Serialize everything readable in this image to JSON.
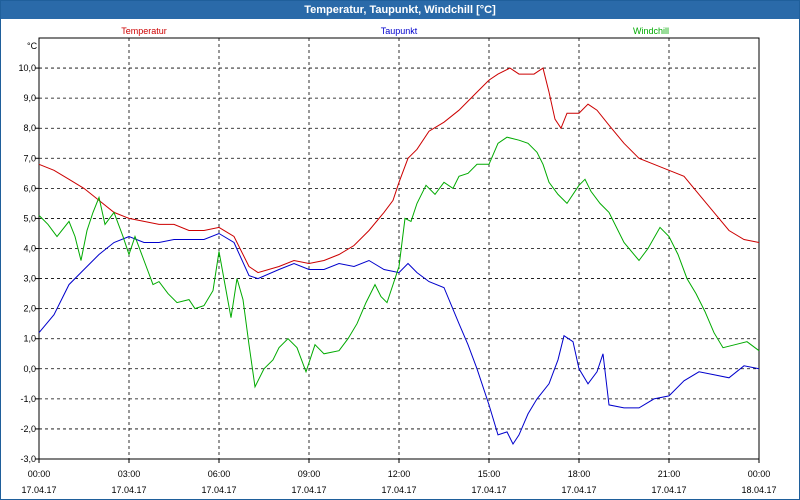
{
  "chart_data": {
    "type": "line",
    "title": "Temperatur, Taupunkt, Windchill [°C]",
    "ylabel": "°C",
    "ylim": [
      -3,
      11
    ],
    "yticks": [
      "10,0",
      "9,0",
      "8,0",
      "7,0",
      "6,0",
      "5,0",
      "4,0",
      "3,0",
      "2,0",
      "1,0",
      "0,0",
      "-1,0",
      "-2,0",
      "-3,0"
    ],
    "xlim_hours": [
      0,
      24
    ],
    "xticks": [
      {
        "time": "00:00",
        "date": "17.04.17"
      },
      {
        "time": "03:00",
        "date": "17.04.17"
      },
      {
        "time": "06:00",
        "date": "17.04.17"
      },
      {
        "time": "09:00",
        "date": "17.04.17"
      },
      {
        "time": "12:00",
        "date": "17.04.17"
      },
      {
        "time": "15:00",
        "date": "17.04.17"
      },
      {
        "time": "18:00",
        "date": "17.04.17"
      },
      {
        "time": "21:00",
        "date": "17.04.17"
      },
      {
        "time": "00:00",
        "date": "18.04.17"
      }
    ],
    "grid": true,
    "series": [
      {
        "name": "Temperatur",
        "color": "#cc0000",
        "points": [
          [
            0,
            6.8
          ],
          [
            0.5,
            6.6
          ],
          [
            1,
            6.3
          ],
          [
            1.5,
            6.0
          ],
          [
            2,
            5.6
          ],
          [
            2.5,
            5.2
          ],
          [
            3,
            5.0
          ],
          [
            3.5,
            4.9
          ],
          [
            4,
            4.8
          ],
          [
            4.5,
            4.8
          ],
          [
            5,
            4.6
          ],
          [
            5.5,
            4.6
          ],
          [
            6,
            4.7
          ],
          [
            6.5,
            4.4
          ],
          [
            7,
            3.4
          ],
          [
            7.3,
            3.2
          ],
          [
            8,
            3.4
          ],
          [
            8.5,
            3.6
          ],
          [
            9,
            3.5
          ],
          [
            9.5,
            3.6
          ],
          [
            10,
            3.8
          ],
          [
            10.5,
            4.1
          ],
          [
            11,
            4.6
          ],
          [
            11.5,
            5.2
          ],
          [
            11.8,
            5.6
          ],
          [
            12,
            6.2
          ],
          [
            12.3,
            7.0
          ],
          [
            12.6,
            7.3
          ],
          [
            13,
            7.9
          ],
          [
            13.5,
            8.2
          ],
          [
            14,
            8.6
          ],
          [
            14.5,
            9.1
          ],
          [
            15,
            9.6
          ],
          [
            15.3,
            9.8
          ],
          [
            15.7,
            10.0
          ],
          [
            16,
            9.8
          ],
          [
            16.2,
            9.8
          ],
          [
            16.5,
            9.8
          ],
          [
            16.8,
            10.0
          ],
          [
            17,
            9.2
          ],
          [
            17.2,
            8.3
          ],
          [
            17.4,
            8.0
          ],
          [
            17.6,
            8.5
          ],
          [
            18,
            8.5
          ],
          [
            18.3,
            8.8
          ],
          [
            18.6,
            8.6
          ],
          [
            19,
            8.1
          ],
          [
            19.5,
            7.5
          ],
          [
            20,
            7.0
          ],
          [
            20.5,
            6.8
          ],
          [
            21,
            6.6
          ],
          [
            21.5,
            6.4
          ],
          [
            22,
            5.8
          ],
          [
            22.5,
            5.2
          ],
          [
            23,
            4.6
          ],
          [
            23.5,
            4.3
          ],
          [
            24,
            4.2
          ]
        ]
      },
      {
        "name": "Taupunkt",
        "color": "#0000cc",
        "points": [
          [
            0,
            1.2
          ],
          [
            0.5,
            1.8
          ],
          [
            1,
            2.8
          ],
          [
            1.5,
            3.3
          ],
          [
            2,
            3.8
          ],
          [
            2.5,
            4.2
          ],
          [
            3,
            4.4
          ],
          [
            3.5,
            4.2
          ],
          [
            4,
            4.2
          ],
          [
            4.5,
            4.3
          ],
          [
            5,
            4.3
          ],
          [
            5.5,
            4.3
          ],
          [
            6,
            4.5
          ],
          [
            6.5,
            4.2
          ],
          [
            7,
            3.1
          ],
          [
            7.3,
            3.0
          ],
          [
            8,
            3.3
          ],
          [
            8.5,
            3.5
          ],
          [
            9,
            3.3
          ],
          [
            9.5,
            3.3
          ],
          [
            10,
            3.5
          ],
          [
            10.5,
            3.4
          ],
          [
            11,
            3.6
          ],
          [
            11.5,
            3.3
          ],
          [
            12,
            3.2
          ],
          [
            12.3,
            3.5
          ],
          [
            12.6,
            3.2
          ],
          [
            13,
            2.9
          ],
          [
            13.5,
            2.7
          ],
          [
            14,
            1.5
          ],
          [
            14.3,
            0.8
          ],
          [
            14.6,
            0.0
          ],
          [
            15,
            -1.2
          ],
          [
            15.3,
            -2.2
          ],
          [
            15.6,
            -2.1
          ],
          [
            15.8,
            -2.5
          ],
          [
            16,
            -2.2
          ],
          [
            16.3,
            -1.5
          ],
          [
            16.6,
            -1.0
          ],
          [
            17,
            -0.5
          ],
          [
            17.3,
            0.3
          ],
          [
            17.5,
            1.1
          ],
          [
            17.8,
            0.9
          ],
          [
            18,
            0.0
          ],
          [
            18.3,
            -0.5
          ],
          [
            18.6,
            -0.1
          ],
          [
            18.8,
            0.5
          ],
          [
            19,
            -1.2
          ],
          [
            19.5,
            -1.3
          ],
          [
            20,
            -1.3
          ],
          [
            20.5,
            -1.0
          ],
          [
            21,
            -0.9
          ],
          [
            21.5,
            -0.4
          ],
          [
            22,
            -0.1
          ],
          [
            22.5,
            -0.2
          ],
          [
            23,
            -0.3
          ],
          [
            23.5,
            0.1
          ],
          [
            24,
            0.0
          ]
        ]
      },
      {
        "name": "Windchill",
        "color": "#00aa00",
        "points": [
          [
            0,
            5.1
          ],
          [
            0.3,
            4.8
          ],
          [
            0.6,
            4.4
          ],
          [
            1,
            4.9
          ],
          [
            1.2,
            4.4
          ],
          [
            1.4,
            3.6
          ],
          [
            1.6,
            4.6
          ],
          [
            1.8,
            5.2
          ],
          [
            2,
            5.7
          ],
          [
            2.2,
            4.8
          ],
          [
            2.5,
            5.2
          ],
          [
            2.8,
            4.4
          ],
          [
            3,
            3.8
          ],
          [
            3.2,
            4.4
          ],
          [
            3.5,
            3.6
          ],
          [
            3.8,
            2.8
          ],
          [
            4,
            2.9
          ],
          [
            4.3,
            2.5
          ],
          [
            4.6,
            2.2
          ],
          [
            5,
            2.3
          ],
          [
            5.2,
            2.0
          ],
          [
            5.5,
            2.1
          ],
          [
            5.8,
            2.6
          ],
          [
            6,
            3.9
          ],
          [
            6.2,
            2.8
          ],
          [
            6.4,
            1.7
          ],
          [
            6.6,
            3.0
          ],
          [
            6.8,
            2.3
          ],
          [
            7,
            0.8
          ],
          [
            7.2,
            -0.6
          ],
          [
            7.5,
            0.0
          ],
          [
            7.8,
            0.3
          ],
          [
            8,
            0.7
          ],
          [
            8.3,
            1.0
          ],
          [
            8.6,
            0.7
          ],
          [
            8.9,
            -0.1
          ],
          [
            9.2,
            0.8
          ],
          [
            9.5,
            0.5
          ],
          [
            10,
            0.6
          ],
          [
            10.3,
            1.0
          ],
          [
            10.6,
            1.5
          ],
          [
            10.9,
            2.2
          ],
          [
            11.2,
            2.8
          ],
          [
            11.4,
            2.4
          ],
          [
            11.6,
            2.2
          ],
          [
            11.8,
            2.8
          ],
          [
            12,
            3.4
          ],
          [
            12.2,
            5.0
          ],
          [
            12.4,
            4.9
          ],
          [
            12.6,
            5.5
          ],
          [
            12.9,
            6.1
          ],
          [
            13.2,
            5.8
          ],
          [
            13.5,
            6.2
          ],
          [
            13.8,
            6.0
          ],
          [
            14,
            6.4
          ],
          [
            14.3,
            6.5
          ],
          [
            14.6,
            6.8
          ],
          [
            15,
            6.8
          ],
          [
            15.3,
            7.5
          ],
          [
            15.6,
            7.7
          ],
          [
            16,
            7.6
          ],
          [
            16.3,
            7.5
          ],
          [
            16.6,
            7.2
          ],
          [
            16.8,
            6.8
          ],
          [
            17,
            6.2
          ],
          [
            17.3,
            5.8
          ],
          [
            17.6,
            5.5
          ],
          [
            18,
            6.1
          ],
          [
            18.2,
            6.3
          ],
          [
            18.4,
            5.9
          ],
          [
            18.7,
            5.5
          ],
          [
            19,
            5.2
          ],
          [
            19.5,
            4.2
          ],
          [
            20,
            3.6
          ],
          [
            20.3,
            4.0
          ],
          [
            20.7,
            4.7
          ],
          [
            21,
            4.4
          ],
          [
            21.3,
            3.8
          ],
          [
            21.6,
            3.0
          ],
          [
            21.9,
            2.5
          ],
          [
            22.2,
            1.9
          ],
          [
            22.5,
            1.2
          ],
          [
            22.8,
            0.7
          ],
          [
            23.2,
            0.8
          ],
          [
            23.6,
            0.9
          ],
          [
            24,
            0.6
          ]
        ]
      }
    ]
  }
}
